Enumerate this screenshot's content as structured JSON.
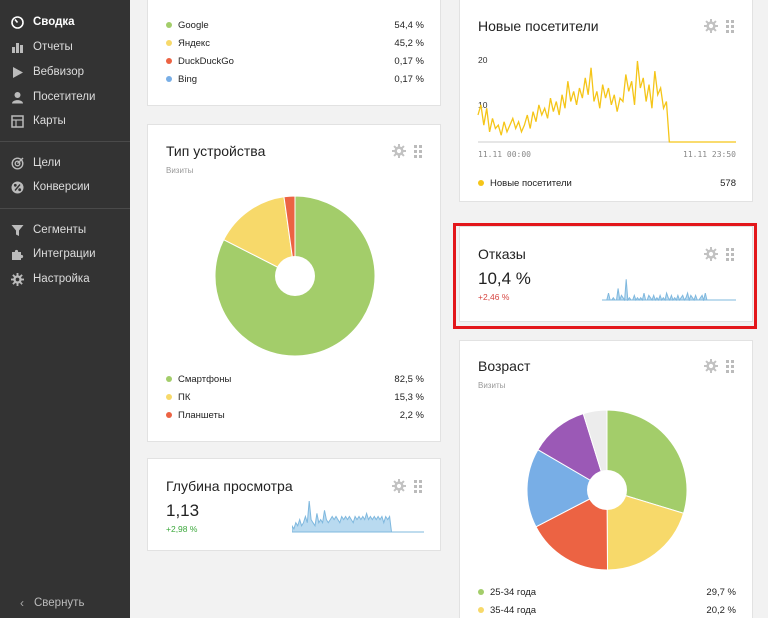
{
  "colors": {
    "sidebar_bg": "#333333",
    "green": "#a3cd6a",
    "yellow": "#f7d96a",
    "red": "#ec6343",
    "blue": "#78aee6",
    "purple": "#9b59b6",
    "light": "#ececec",
    "line_yellow": "#f5c518",
    "spark_blue": "#7fb8de",
    "highlight_red": "#e3171b",
    "positive": "#3ba83b",
    "negative": "#d64541"
  },
  "sidebar": {
    "items": [
      {
        "label": "Сводка",
        "icon": "dashboard-gauge-icon",
        "active": true
      },
      {
        "label": "Отчеты",
        "icon": "bar-chart-icon"
      },
      {
        "label": "Вебвизор",
        "icon": "play-icon"
      },
      {
        "label": "Посетители",
        "icon": "user-icon"
      },
      {
        "label": "Карты",
        "icon": "map-icon"
      },
      {
        "label": "Цели",
        "icon": "target-icon"
      },
      {
        "label": "Конверсии",
        "icon": "conversion-icon"
      },
      {
        "label": "Сегменты",
        "icon": "filter-funnel-icon"
      },
      {
        "label": "Интеграции",
        "icon": "puzzle-icon"
      },
      {
        "label": "Настройка",
        "icon": "gear-icon"
      }
    ],
    "collapse_label": "Свернуть"
  },
  "search_engines": {
    "rows": [
      {
        "name": "Google",
        "value": "54,4 %",
        "color": "#a3cd6a"
      },
      {
        "name": "Яндекс",
        "value": "45,2 %",
        "color": "#f7d96a"
      },
      {
        "name": "DuckDuckGo",
        "value": "0,17 %",
        "color": "#ec6343"
      },
      {
        "name": "Bing",
        "value": "0,17 %",
        "color": "#78aee6"
      }
    ]
  },
  "device": {
    "title": "Тип устройства",
    "subtitle": "Визиты",
    "legend": [
      {
        "name": "Смартфоны",
        "value": "82,5 %",
        "color": "#a3cd6a"
      },
      {
        "name": "ПК",
        "value": "15,3 %",
        "color": "#f7d96a"
      },
      {
        "name": "Планшеты",
        "value": "2,2 %",
        "color": "#ec6343"
      }
    ]
  },
  "depth": {
    "title": "Глубина просмотра",
    "value": "1,13",
    "delta": "+2,98 %"
  },
  "new_visitors": {
    "title": "Новые посетители",
    "y_ticks": [
      "20",
      "10"
    ],
    "x_start": "11.11 00:00",
    "x_end": "11.11 23:50",
    "legend_name": "Новые посетители",
    "legend_value": "578"
  },
  "bounce": {
    "title": "Отказы",
    "value": "10,4 %",
    "delta": "+2,46 %"
  },
  "age": {
    "title": "Возраст",
    "subtitle": "Визиты",
    "legend": [
      {
        "name": "25-34 года",
        "value": "29,7 %",
        "color": "#a3cd6a"
      },
      {
        "name": "35-44 года",
        "value": "20,2 %",
        "color": "#f7d96a"
      }
    ]
  },
  "chart_data": [
    {
      "type": "pie",
      "title": "Тип устройства",
      "categories": [
        "Смартфоны",
        "ПК",
        "Планшеты"
      ],
      "values": [
        82.5,
        15.3,
        2.2
      ],
      "colors": [
        "#a3cd6a",
        "#f7d96a",
        "#ec6343"
      ]
    },
    {
      "type": "line",
      "title": "Новые посетители",
      "x_range": [
        "11.11 00:00",
        "11.11 23:50"
      ],
      "ylim": [
        0,
        24
      ],
      "y_ticks": [
        10,
        20
      ],
      "series": [
        {
          "name": "Новые посетители",
          "values": [
            8,
            11,
            5,
            10,
            3,
            7,
            4,
            5,
            2,
            6,
            3,
            5,
            7,
            4,
            6,
            3,
            5,
            8,
            4,
            9,
            6,
            11,
            8,
            10,
            7,
            13,
            9,
            12,
            8,
            14,
            10,
            18,
            12,
            15,
            11,
            16,
            13,
            19,
            14,
            22,
            12,
            15,
            10,
            17,
            13,
            16,
            11,
            14,
            9,
            13,
            12,
            20,
            15,
            18,
            11,
            24,
            16,
            19,
            12,
            17,
            10,
            21,
            14,
            16,
            10,
            12,
            0,
            0,
            0,
            0,
            0,
            0,
            0,
            0,
            0,
            0,
            0,
            0,
            0,
            0,
            0,
            0,
            0,
            0,
            0,
            0,
            0,
            0,
            0,
            0
          ]
        }
      ]
    },
    {
      "type": "area",
      "title": "Отказы",
      "ylim": [
        0,
        10
      ],
      "series": [
        {
          "name": "",
          "values": [
            0,
            0,
            0,
            0,
            3,
            0,
            0,
            1,
            0,
            0,
            5,
            0,
            2,
            1,
            0,
            9,
            0,
            1,
            0,
            0,
            2,
            0,
            1,
            0,
            1,
            0,
            3,
            0,
            0,
            2,
            1,
            0,
            2,
            0,
            1,
            0,
            2,
            0,
            1,
            0,
            3,
            1,
            0,
            2,
            0,
            1,
            0,
            2,
            0,
            1,
            2,
            0,
            1,
            3,
            0,
            2,
            1,
            0,
            2,
            0,
            0,
            1,
            2,
            0,
            3,
            0,
            0,
            0,
            0,
            0,
            0,
            0,
            0,
            0,
            0,
            0,
            0,
            0,
            0,
            0,
            0,
            0,
            0,
            0
          ]
        }
      ]
    },
    {
      "type": "area",
      "title": "Глубина просмотра",
      "ylim": [
        0,
        10
      ],
      "series": [
        {
          "name": "",
          "values": [
            2,
            1,
            3,
            2,
            4,
            2,
            3,
            5,
            3,
            10,
            4,
            3,
            2,
            6,
            3,
            4,
            3,
            7,
            4,
            3,
            4,
            5,
            4,
            5,
            4,
            3,
            5,
            4,
            5,
            4,
            5,
            4,
            3,
            5,
            4,
            5,
            4,
            5,
            4,
            6,
            4,
            5,
            4,
            5,
            4,
            5,
            4,
            5,
            3,
            5,
            4,
            5,
            0,
            0,
            0,
            0,
            0,
            0,
            0,
            0,
            0,
            0,
            0,
            0,
            0,
            0,
            0,
            0,
            0,
            0
          ]
        }
      ]
    },
    {
      "type": "pie",
      "title": "Возраст",
      "categories": [
        "25-34 года",
        "35-44 года",
        "",
        "",
        "",
        ""
      ],
      "values": [
        29.7,
        20.2,
        17.5,
        16.0,
        11.8,
        4.8
      ],
      "colors": [
        "#a3cd6a",
        "#f7d96a",
        "#ec6343",
        "#78aee6",
        "#9b59b6",
        "#ececec"
      ]
    }
  ]
}
